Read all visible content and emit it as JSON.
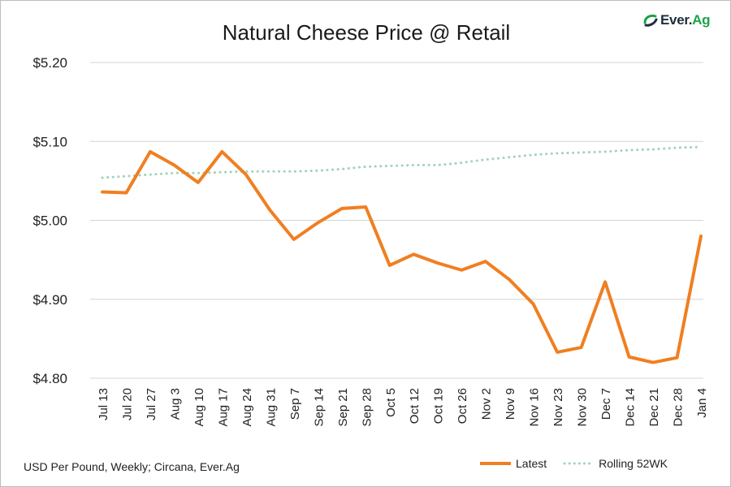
{
  "logo": {
    "text_main": "Ever.",
    "text_accent": "Ag"
  },
  "footer": {
    "source": "USD Per Pound, Weekly; Circana, Ever.Ag"
  },
  "colors": {
    "latest": "#f07f21",
    "rolling": "#9fd3bb",
    "grid": "#d4d4d4",
    "logo_green": "#1aa34a"
  },
  "chart_data": {
    "type": "line",
    "title": "Natural Cheese Price @ Retail",
    "xlabel": "",
    "ylabel": "",
    "categories": [
      "Jul 13",
      "Jul 20",
      "Jul 27",
      "Aug 3",
      "Aug 10",
      "Aug 17",
      "Aug 24",
      "Aug 31",
      "Sep 7",
      "Sep 14",
      "Sep 21",
      "Sep 28",
      "Oct 5",
      "Oct 12",
      "Oct 19",
      "Oct 26",
      "Nov 2",
      "Nov 9",
      "Nov 16",
      "Nov 23",
      "Nov 30",
      "Dec 7",
      "Dec 14",
      "Dec 21",
      "Dec 28",
      "Jan 4"
    ],
    "ylim": [
      4.8,
      5.2
    ],
    "yticks": [
      4.8,
      4.9,
      5.0,
      5.1,
      5.2
    ],
    "ytick_labels": [
      "$4.80",
      "$4.90",
      "$5.00",
      "$5.10",
      "$5.20"
    ],
    "grid": true,
    "legend_position": "bottom-right",
    "series": [
      {
        "name": "Latest",
        "style": "solid",
        "values": [
          5.036,
          5.035,
          5.087,
          5.07,
          5.048,
          5.087,
          5.058,
          5.013,
          4.976,
          4.997,
          5.015,
          5.017,
          4.943,
          4.957,
          4.946,
          4.937,
          4.948,
          4.925,
          4.894,
          4.833,
          4.839,
          4.922,
          4.827,
          4.82,
          4.826,
          4.98
        ]
      },
      {
        "name": "Rolling 52WK",
        "style": "dotted",
        "values": [
          5.054,
          5.056,
          5.058,
          5.06,
          5.06,
          5.061,
          5.062,
          5.062,
          5.062,
          5.063,
          5.065,
          5.068,
          5.069,
          5.07,
          5.07,
          5.073,
          5.077,
          5.08,
          5.083,
          5.085,
          5.086,
          5.087,
          5.089,
          5.09,
          5.092,
          5.093
        ]
      }
    ]
  }
}
